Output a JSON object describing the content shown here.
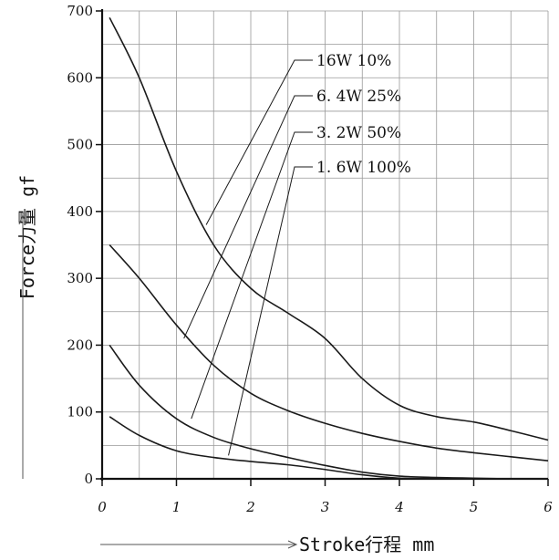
{
  "chart_data": {
    "type": "line",
    "xlabel": "Stroke行程 mm",
    "ylabel": "Force力量 gf",
    "xlim": [
      0,
      6
    ],
    "ylim": [
      0,
      700
    ],
    "x_ticks": [
      "0",
      "1",
      "2",
      "3",
      "4",
      "5",
      "6"
    ],
    "y_ticks": [
      "0",
      "100",
      "200",
      "300",
      "400",
      "500",
      "600",
      "700"
    ],
    "grid": true,
    "series": [
      {
        "name": "16W 10%",
        "x": [
          0.1,
          0.5,
          1.0,
          1.5,
          2.0,
          2.5,
          3.0,
          3.5,
          4.0,
          4.5,
          5.0,
          5.5,
          6.0
        ],
        "y": [
          690,
          600,
          460,
          350,
          285,
          248,
          210,
          150,
          110,
          93,
          85,
          72,
          58
        ]
      },
      {
        "name": "6.4W 25%",
        "x": [
          0.1,
          0.5,
          1.0,
          1.5,
          2.0,
          2.5,
          3.0,
          3.5,
          4.0,
          4.5,
          5.0,
          5.5,
          6.0
        ],
        "y": [
          350,
          300,
          230,
          170,
          128,
          102,
          83,
          68,
          56,
          46,
          39,
          33,
          27
        ]
      },
      {
        "name": "3.2W 50%",
        "x": [
          0.1,
          0.5,
          1.0,
          1.5,
          2.0,
          2.5,
          3.0,
          3.5,
          4.0,
          4.5,
          5.0,
          5.5,
          6.0
        ],
        "y": [
          200,
          140,
          90,
          62,
          45,
          32,
          20,
          10,
          4,
          2,
          1,
          0,
          0
        ]
      },
      {
        "name": "1.6W 100%",
        "x": [
          0.1,
          0.5,
          1.0,
          1.5,
          2.0,
          2.5,
          3.0,
          3.5,
          4.0,
          4.5,
          5.0,
          5.5,
          6.0
        ],
        "y": [
          93,
          65,
          42,
          32,
          26,
          21,
          14,
          6,
          1,
          0,
          0,
          0,
          0
        ]
      }
    ],
    "legend": {
      "placement": "top-center",
      "entries": [
        "16W 10%",
        "6.4W 25%",
        "3.2W 50%",
        "1.6W 100%"
      ],
      "displayed_labels": [
        "16W  10%",
        "6. 4W  25%",
        "3. 2W  50%",
        "1. 6W  100%"
      ],
      "leader_targets": [
        {
          "series": 0,
          "x": 1.4,
          "y": 380
        },
        {
          "series": 1,
          "x": 1.1,
          "y": 210
        },
        {
          "series": 2,
          "x": 1.2,
          "y": 90
        },
        {
          "series": 3,
          "x": 1.7,
          "y": 35
        }
      ]
    }
  }
}
